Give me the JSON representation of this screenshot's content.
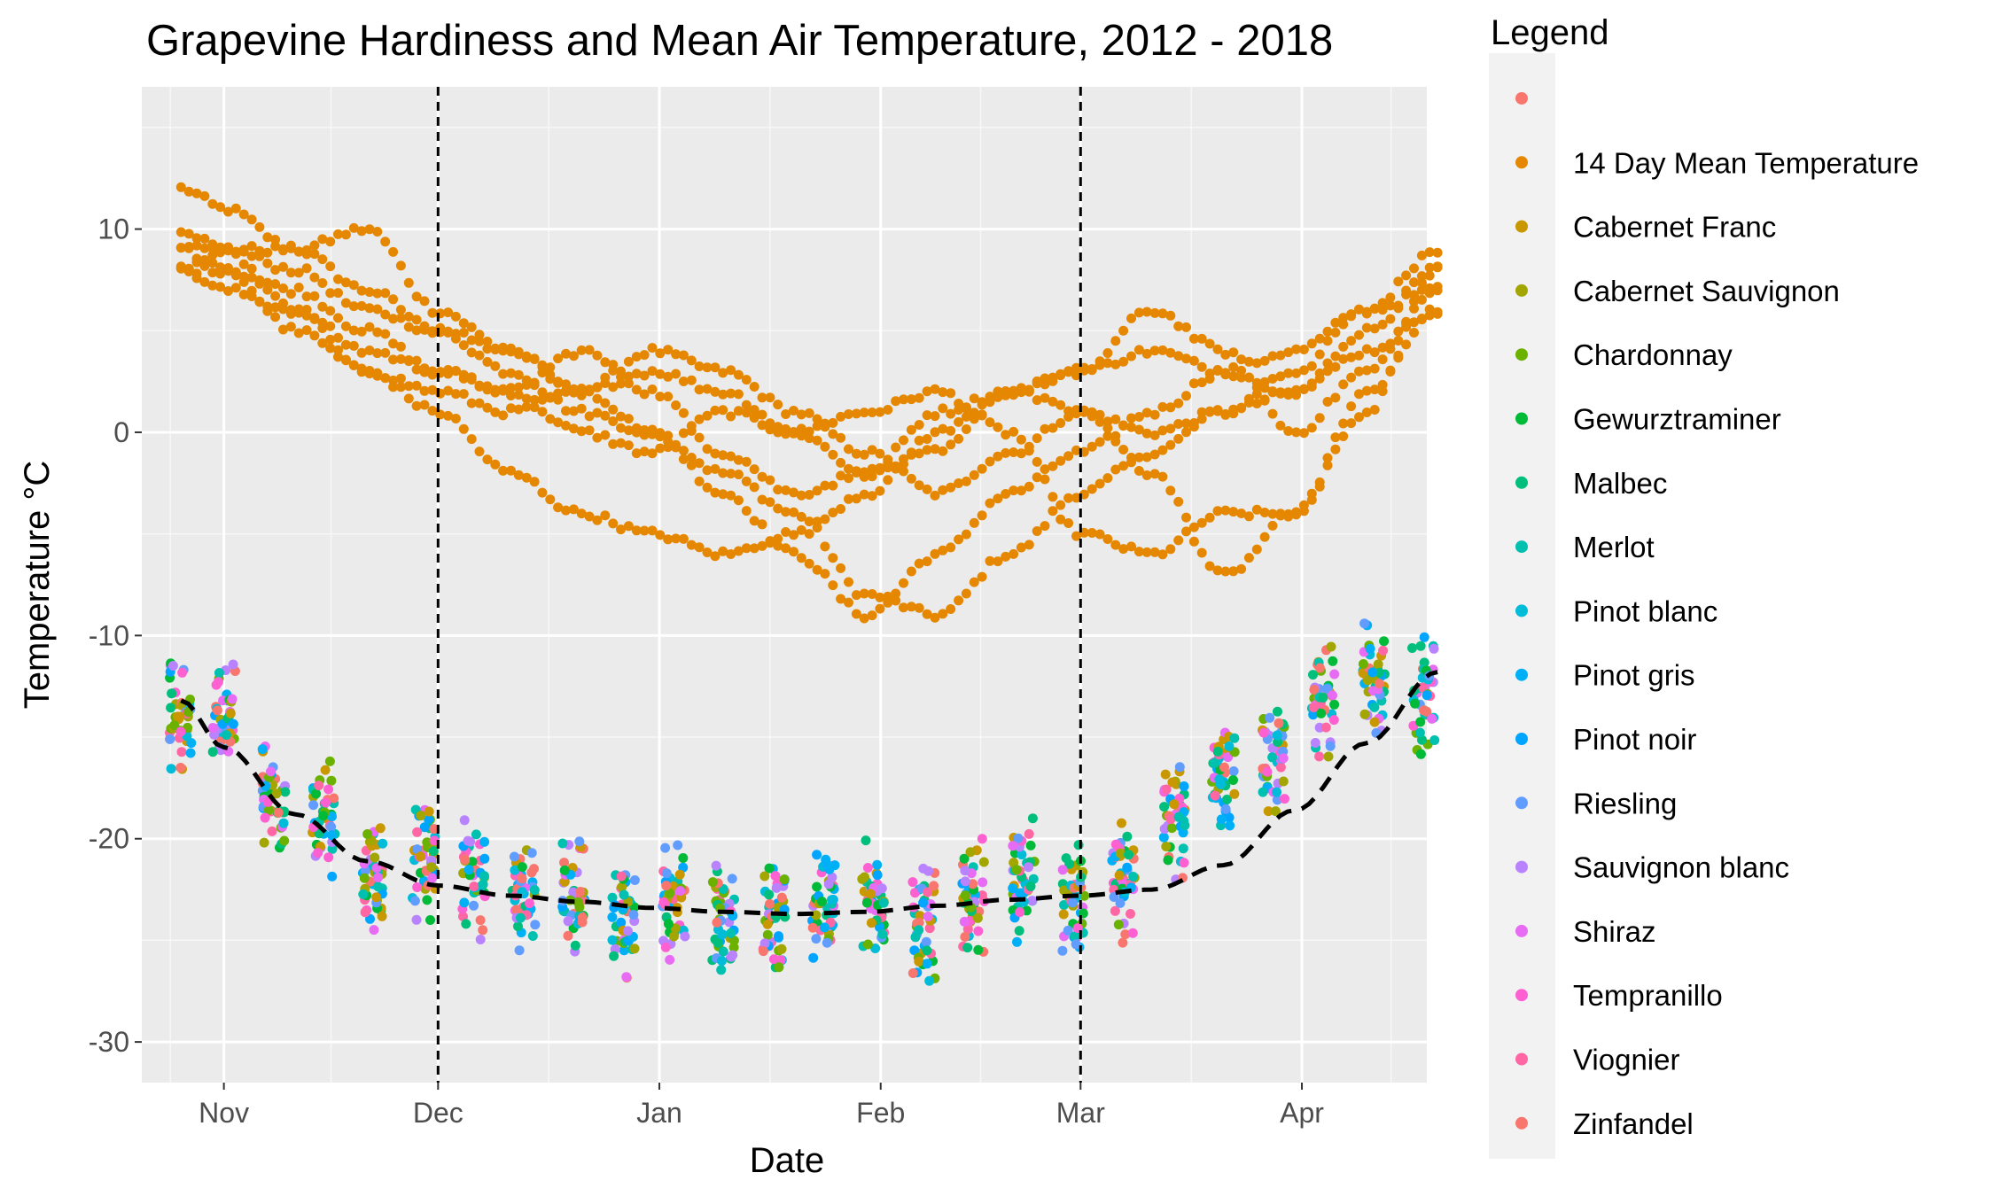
{
  "chart_data": {
    "type": "scatter",
    "title": "Grapevine Hardiness and Mean Air Temperature, 2012 - 2018",
    "xlabel": "Date",
    "ylabel": "Temperature °C",
    "x_ticks": [
      "Nov",
      "Dec",
      "Jan",
      "Feb",
      "Mar",
      "Apr"
    ],
    "y_ticks": [
      10,
      0,
      -10,
      -20,
      -30
    ],
    "xlim": [
      "Oct 20",
      "Apr 16"
    ],
    "ylim": [
      -32,
      17
    ],
    "grid": true,
    "legend": {
      "title": "Legend",
      "placement": "right",
      "entries": [
        {
          "label": "",
          "color": "#F8766D"
        },
        {
          "label": "14 Day Mean Temperature",
          "color": "#E58700"
        },
        {
          "label": "Cabernet Franc",
          "color": "#C99800"
        },
        {
          "label": "Cabernet Sauvignon",
          "color": "#A3A500"
        },
        {
          "label": "Chardonnay",
          "color": "#6BB100"
        },
        {
          "label": "Gewurztraminer",
          "color": "#00BA38"
        },
        {
          "label": "Malbec",
          "color": "#00BF7D"
        },
        {
          "label": "Merlot",
          "color": "#00C0AF"
        },
        {
          "label": "Pinot blanc",
          "color": "#00BCD8"
        },
        {
          "label": "Pinot gris",
          "color": "#00B0F6"
        },
        {
          "label": "Pinot noir",
          "color": "#00A5FF"
        },
        {
          "label": "Riesling",
          "color": "#619CFF"
        },
        {
          "label": "Sauvignon blanc",
          "color": "#B983FF"
        },
        {
          "label": "Shiraz",
          "color": "#E76BF3"
        },
        {
          "label": "Tempranillo",
          "color": "#FD61D1"
        },
        {
          "label": "Viognier",
          "color": "#FF67A4"
        },
        {
          "label": "Zinfandel",
          "color": "#F8766D"
        }
      ]
    },
    "vertical_lines": [
      "Dec 1",
      "Mar 1"
    ],
    "mean_temperature_series": {
      "name": "14 Day Mean Temperature",
      "color": "#E58700",
      "seasons": [
        {
          "x": [
            -6,
            0,
            10,
            20,
            30,
            40,
            50,
            60,
            70,
            80,
            90,
            100,
            110,
            120,
            130,
            140,
            150,
            160,
            170
          ],
          "y": [
            12,
            11,
            9,
            7,
            5,
            4,
            2,
            0,
            -2,
            -4,
            -8,
            -9,
            -6,
            -3,
            -1,
            1,
            3,
            6,
            9
          ]
        },
        {
          "x": [
            -6,
            0,
            10,
            20,
            30,
            40,
            50,
            60,
            70,
            80,
            90,
            100,
            110,
            120,
            130,
            140,
            150,
            160,
            170
          ],
          "y": [
            10,
            9,
            9,
            10,
            6,
            4,
            2,
            4,
            3,
            1,
            -1,
            -3,
            -1,
            1,
            0,
            1,
            2,
            5,
            8
          ]
        },
        {
          "x": [
            -6,
            0,
            10,
            20,
            30,
            40,
            50,
            60,
            70,
            80,
            90,
            100,
            110,
            120,
            130,
            140,
            150,
            160,
            170
          ],
          "y": [
            9,
            9,
            8,
            6,
            5,
            3,
            1,
            0,
            -3,
            -6,
            -9,
            -6,
            -3,
            -1,
            1,
            3,
            4,
            6,
            7
          ]
        },
        {
          "x": [
            -6,
            0,
            10,
            20,
            30,
            40,
            50,
            60,
            70,
            80,
            90,
            100,
            110,
            120,
            130,
            140,
            150,
            160,
            170
          ],
          "y": [
            8,
            8,
            7,
            5,
            3,
            2,
            0,
            -1,
            1,
            0,
            1,
            2,
            0,
            -5,
            -6,
            -4,
            -4,
            2,
            6
          ]
        },
        {
          "x": [
            -6,
            0,
            10,
            20,
            30,
            40,
            50,
            60,
            70,
            80,
            90,
            100,
            110,
            120,
            130,
            140,
            150,
            160,
            170
          ],
          "y": [
            9,
            8,
            5,
            3,
            2,
            1,
            2,
            3,
            2,
            0,
            -2,
            1,
            2,
            3,
            4,
            3,
            2,
            4,
            6
          ]
        },
        {
          "x": [
            -6,
            0,
            10,
            20,
            30,
            40,
            50,
            60,
            70,
            80,
            90,
            100,
            110,
            120,
            130,
            140,
            150,
            160,
            170
          ],
          "y": [
            8,
            7,
            6,
            4,
            3,
            2,
            4,
            2,
            -1,
            -3,
            -2,
            -1,
            2,
            3,
            6,
            4,
            0,
            3,
            7
          ]
        },
        {
          "x": [
            -6,
            0,
            10,
            20,
            30,
            40,
            50,
            60,
            70,
            80,
            90,
            100,
            110,
            120,
            130,
            140,
            150,
            160,
            170
          ],
          "y": [
            8,
            9,
            6,
            3,
            1,
            -2,
            -4,
            -5,
            -6,
            -5,
            -3,
            0,
            2,
            1,
            -2,
            -7,
            -4,
            1,
            8
          ]
        }
      ]
    },
    "hardiness_sample_dates": [
      -6,
      0,
      7,
      14,
      21,
      28,
      35,
      42,
      49,
      56,
      63,
      70,
      77,
      84,
      91,
      98,
      105,
      112,
      119,
      126,
      133,
      140,
      147,
      154,
      161,
      168
    ],
    "hardiness_cluster_centers": [
      -14,
      -14,
      -18,
      -19,
      -22,
      -21,
      -22,
      -23,
      -23,
      -24,
      -23,
      -24,
      -24,
      -23,
      -23,
      -24,
      -23,
      -22,
      -23,
      -22,
      -19,
      -17,
      -16,
      -13,
      -12,
      -13
    ],
    "hardiness_trend": {
      "x": [
        -6,
        0,
        10,
        20,
        30,
        40,
        50,
        60,
        70,
        80,
        90,
        100,
        110,
        120,
        130,
        140,
        150,
        160,
        170
      ],
      "y": [
        -13.2,
        -15.5,
        -18.8,
        -21.1,
        -22.3,
        -22.8,
        -23.1,
        -23.4,
        -23.6,
        -23.7,
        -23.6,
        -23.3,
        -23.0,
        -22.8,
        -22.5,
        -21.3,
        -18.6,
        -15.3,
        -11.8
      ]
    }
  }
}
